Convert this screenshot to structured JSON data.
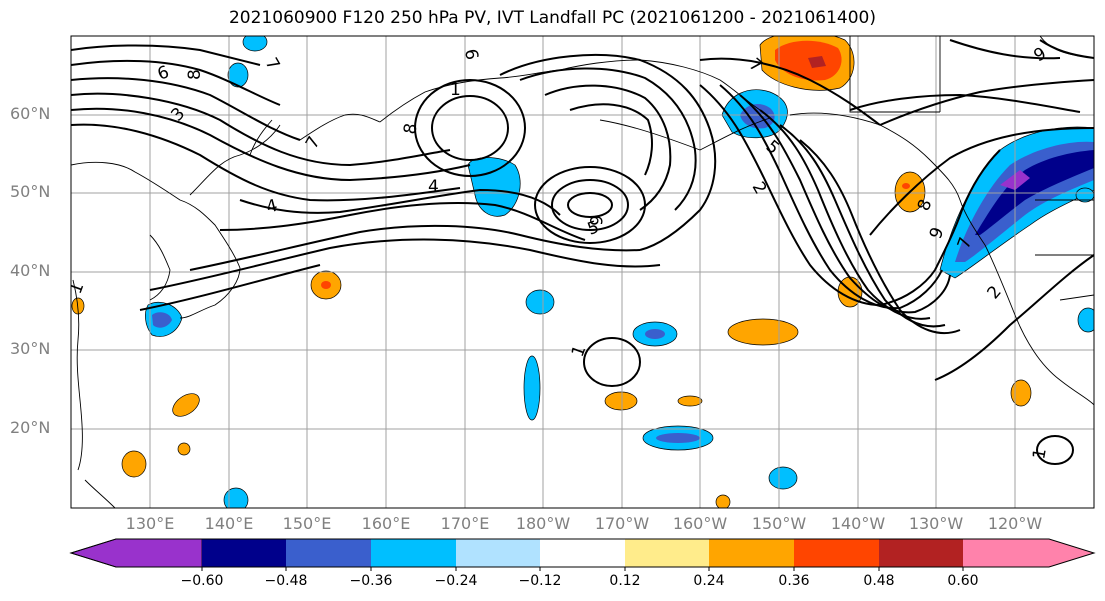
{
  "title": "2021060900 F120 250 hPa PV, IVT Landfall PC (2021061200 - 2021061400)",
  "lat_labels": [
    "60°N",
    "50°N",
    "40°N",
    "30°N",
    "20°N"
  ],
  "lon_labels": [
    "130°E",
    "140°E",
    "150°E",
    "160°E",
    "170°E",
    "180°W",
    "170°W",
    "160°W",
    "150°W",
    "140°W",
    "130°W",
    "120°W"
  ],
  "colorbar": {
    "ticks": [
      "−0.60",
      "−0.48",
      "−0.36",
      "−0.24",
      "−0.12",
      "0.12",
      "0.24",
      "0.36",
      "0.48",
      "0.60"
    ],
    "colors": [
      "#9932cc",
      "#00008b",
      "#3a5fcd",
      "#00bfff",
      "#b0e2ff",
      "#ffffff",
      "#ffec8b",
      "#ffa500",
      "#ff4500",
      "#b22222",
      "#ff82ab"
    ]
  },
  "contour_labels": [
    "6",
    "8",
    "3",
    "7",
    "4",
    "7",
    "6",
    "8",
    "1",
    "4",
    "5",
    "6",
    "7",
    "5",
    "2",
    "8",
    "9",
    "7",
    "1",
    "9",
    "1",
    "2",
    "1"
  ]
}
